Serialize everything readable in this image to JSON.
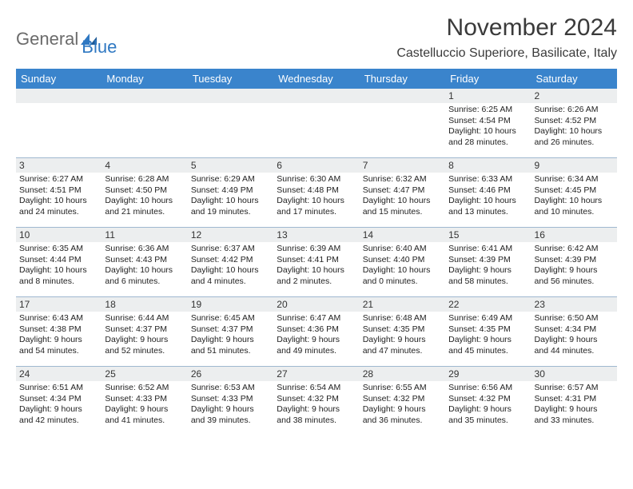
{
  "brand": {
    "general": "General",
    "blue": "Blue"
  },
  "title": "November 2024",
  "location": "Castelluccio Superiore, Basilicate, Italy",
  "colors": {
    "header_bg": "#3a84cc",
    "header_text": "#ffffff",
    "band_bg": "#eceeef",
    "rule": "#9fb8d0",
    "brand_gray": "#6b6b6b",
    "brand_blue": "#2f78c2",
    "text": "#222222"
  },
  "typography": {
    "title_fontsize": 30,
    "location_fontsize": 16,
    "dayheader_fontsize": 13,
    "cell_fontsize": 10.5
  },
  "day_headers": [
    "Sunday",
    "Monday",
    "Tuesday",
    "Wednesday",
    "Thursday",
    "Friday",
    "Saturday"
  ],
  "weeks": [
    [
      {
        "blank": true
      },
      {
        "blank": true
      },
      {
        "blank": true
      },
      {
        "blank": true
      },
      {
        "blank": true
      },
      {
        "n": "1",
        "sunrise": "6:25 AM",
        "sunset": "4:54 PM",
        "dl1": "Daylight: 10 hours",
        "dl2": "and 28 minutes."
      },
      {
        "n": "2",
        "sunrise": "6:26 AM",
        "sunset": "4:52 PM",
        "dl1": "Daylight: 10 hours",
        "dl2": "and 26 minutes."
      }
    ],
    [
      {
        "n": "3",
        "sunrise": "6:27 AM",
        "sunset": "4:51 PM",
        "dl1": "Daylight: 10 hours",
        "dl2": "and 24 minutes."
      },
      {
        "n": "4",
        "sunrise": "6:28 AM",
        "sunset": "4:50 PM",
        "dl1": "Daylight: 10 hours",
        "dl2": "and 21 minutes."
      },
      {
        "n": "5",
        "sunrise": "6:29 AM",
        "sunset": "4:49 PM",
        "dl1": "Daylight: 10 hours",
        "dl2": "and 19 minutes."
      },
      {
        "n": "6",
        "sunrise": "6:30 AM",
        "sunset": "4:48 PM",
        "dl1": "Daylight: 10 hours",
        "dl2": "and 17 minutes."
      },
      {
        "n": "7",
        "sunrise": "6:32 AM",
        "sunset": "4:47 PM",
        "dl1": "Daylight: 10 hours",
        "dl2": "and 15 minutes."
      },
      {
        "n": "8",
        "sunrise": "6:33 AM",
        "sunset": "4:46 PM",
        "dl1": "Daylight: 10 hours",
        "dl2": "and 13 minutes."
      },
      {
        "n": "9",
        "sunrise": "6:34 AM",
        "sunset": "4:45 PM",
        "dl1": "Daylight: 10 hours",
        "dl2": "and 10 minutes."
      }
    ],
    [
      {
        "n": "10",
        "sunrise": "6:35 AM",
        "sunset": "4:44 PM",
        "dl1": "Daylight: 10 hours",
        "dl2": "and 8 minutes."
      },
      {
        "n": "11",
        "sunrise": "6:36 AM",
        "sunset": "4:43 PM",
        "dl1": "Daylight: 10 hours",
        "dl2": "and 6 minutes."
      },
      {
        "n": "12",
        "sunrise": "6:37 AM",
        "sunset": "4:42 PM",
        "dl1": "Daylight: 10 hours",
        "dl2": "and 4 minutes."
      },
      {
        "n": "13",
        "sunrise": "6:39 AM",
        "sunset": "4:41 PM",
        "dl1": "Daylight: 10 hours",
        "dl2": "and 2 minutes."
      },
      {
        "n": "14",
        "sunrise": "6:40 AM",
        "sunset": "4:40 PM",
        "dl1": "Daylight: 10 hours",
        "dl2": "and 0 minutes."
      },
      {
        "n": "15",
        "sunrise": "6:41 AM",
        "sunset": "4:39 PM",
        "dl1": "Daylight: 9 hours",
        "dl2": "and 58 minutes."
      },
      {
        "n": "16",
        "sunrise": "6:42 AM",
        "sunset": "4:39 PM",
        "dl1": "Daylight: 9 hours",
        "dl2": "and 56 minutes."
      }
    ],
    [
      {
        "n": "17",
        "sunrise": "6:43 AM",
        "sunset": "4:38 PM",
        "dl1": "Daylight: 9 hours",
        "dl2": "and 54 minutes."
      },
      {
        "n": "18",
        "sunrise": "6:44 AM",
        "sunset": "4:37 PM",
        "dl1": "Daylight: 9 hours",
        "dl2": "and 52 minutes."
      },
      {
        "n": "19",
        "sunrise": "6:45 AM",
        "sunset": "4:37 PM",
        "dl1": "Daylight: 9 hours",
        "dl2": "and 51 minutes."
      },
      {
        "n": "20",
        "sunrise": "6:47 AM",
        "sunset": "4:36 PM",
        "dl1": "Daylight: 9 hours",
        "dl2": "and 49 minutes."
      },
      {
        "n": "21",
        "sunrise": "6:48 AM",
        "sunset": "4:35 PM",
        "dl1": "Daylight: 9 hours",
        "dl2": "and 47 minutes."
      },
      {
        "n": "22",
        "sunrise": "6:49 AM",
        "sunset": "4:35 PM",
        "dl1": "Daylight: 9 hours",
        "dl2": "and 45 minutes."
      },
      {
        "n": "23",
        "sunrise": "6:50 AM",
        "sunset": "4:34 PM",
        "dl1": "Daylight: 9 hours",
        "dl2": "and 44 minutes."
      }
    ],
    [
      {
        "n": "24",
        "sunrise": "6:51 AM",
        "sunset": "4:34 PM",
        "dl1": "Daylight: 9 hours",
        "dl2": "and 42 minutes."
      },
      {
        "n": "25",
        "sunrise": "6:52 AM",
        "sunset": "4:33 PM",
        "dl1": "Daylight: 9 hours",
        "dl2": "and 41 minutes."
      },
      {
        "n": "26",
        "sunrise": "6:53 AM",
        "sunset": "4:33 PM",
        "dl1": "Daylight: 9 hours",
        "dl2": "and 39 minutes."
      },
      {
        "n": "27",
        "sunrise": "6:54 AM",
        "sunset": "4:32 PM",
        "dl1": "Daylight: 9 hours",
        "dl2": "and 38 minutes."
      },
      {
        "n": "28",
        "sunrise": "6:55 AM",
        "sunset": "4:32 PM",
        "dl1": "Daylight: 9 hours",
        "dl2": "and 36 minutes."
      },
      {
        "n": "29",
        "sunrise": "6:56 AM",
        "sunset": "4:32 PM",
        "dl1": "Daylight: 9 hours",
        "dl2": "and 35 minutes."
      },
      {
        "n": "30",
        "sunrise": "6:57 AM",
        "sunset": "4:31 PM",
        "dl1": "Daylight: 9 hours",
        "dl2": "and 33 minutes."
      }
    ]
  ]
}
